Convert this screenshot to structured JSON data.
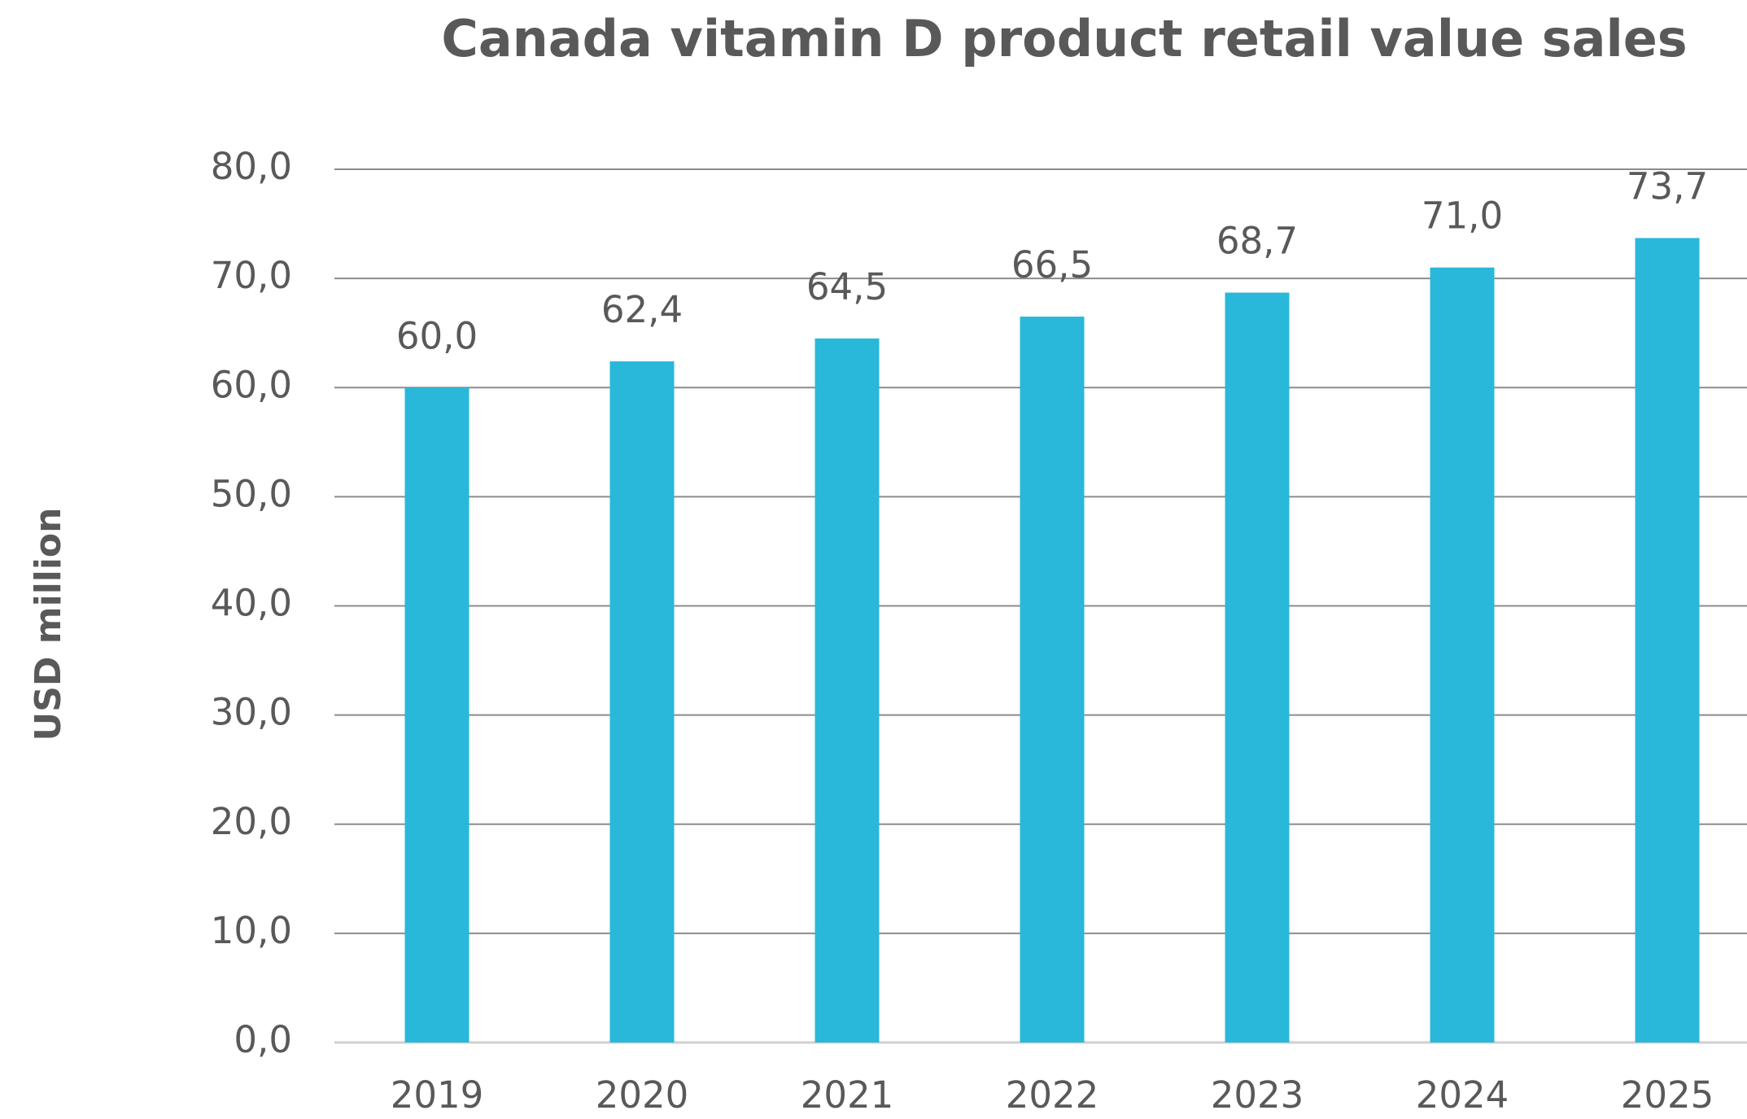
{
  "chart_data": {
    "type": "bar",
    "title": "Canada vitamin D product retail value sales",
    "y_label": "USD million",
    "categories": [
      "2019",
      "2020",
      "2021",
      "2022",
      "2023",
      "2024",
      "2025"
    ],
    "values": [
      60.0,
      62.4,
      64.5,
      66.5,
      68.7,
      71.0,
      73.7
    ],
    "value_labels": [
      "60,0",
      "62,4",
      "64,5",
      "66,5",
      "68,7",
      "71,0",
      "73,7"
    ],
    "color": "#29b8d9",
    "ylim": [
      0,
      80
    ],
    "yticks": [
      {
        "value": 0,
        "label": "0,0"
      },
      {
        "value": 10,
        "label": "10,0"
      },
      {
        "value": 20,
        "label": "20,0"
      },
      {
        "value": 30,
        "label": "30,0"
      },
      {
        "value": 40,
        "label": "40,0"
      },
      {
        "value": 50,
        "label": "50,0"
      },
      {
        "value": 60,
        "label": "60,0"
      },
      {
        "value": 70,
        "label": "70,0"
      },
      {
        "value": 80,
        "label": "80,0"
      }
    ],
    "grid": true
  }
}
